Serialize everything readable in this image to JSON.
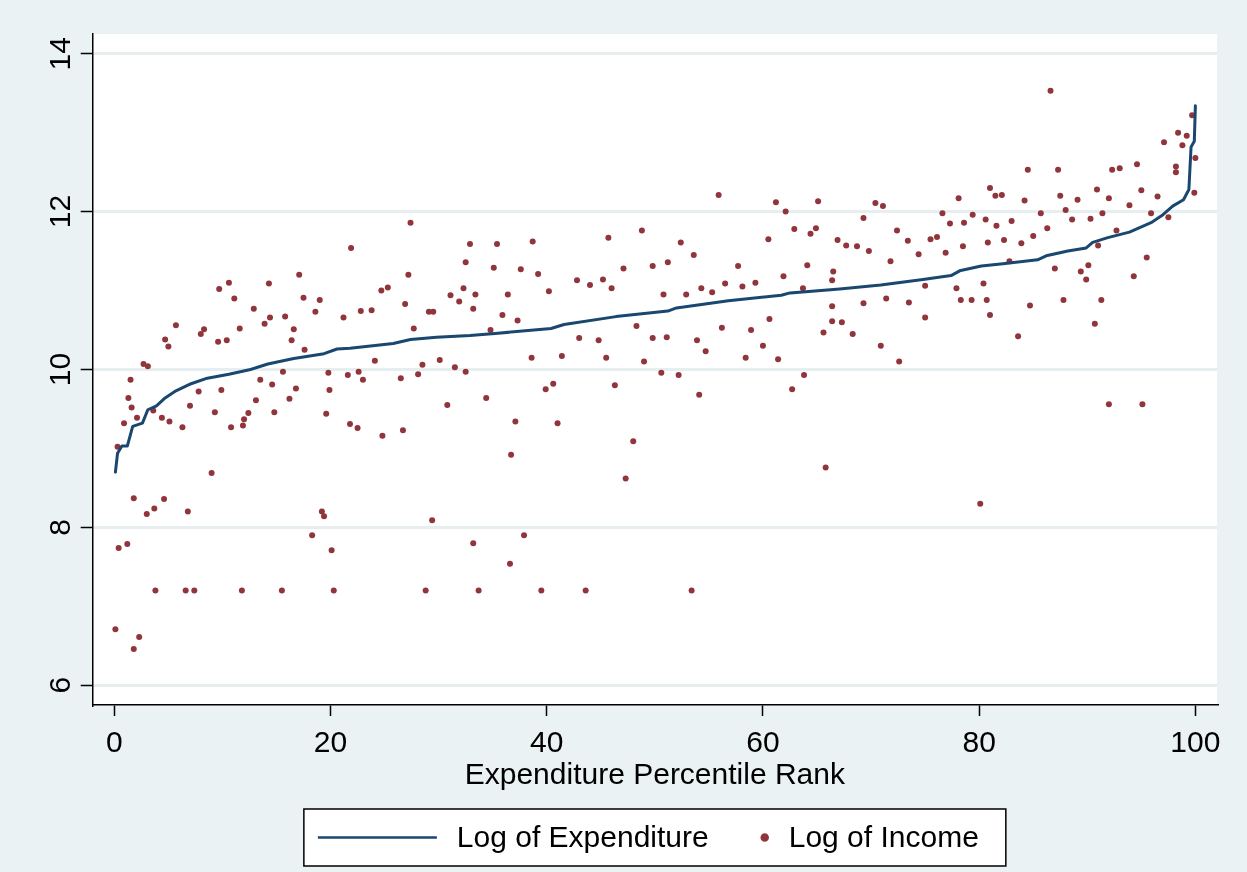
{
  "chart_data": {
    "type": "line",
    "xlabel": "Expenditure Percentile Rank",
    "xlim": [
      -2,
      102
    ],
    "xticks": [
      0,
      20,
      40,
      60,
      80,
      100
    ],
    "ylim": [
      5.75,
      14.25
    ],
    "yticks": [
      6,
      8,
      10,
      12,
      14
    ],
    "grid": "y",
    "legend": "bottom",
    "series": [
      {
        "name": "Log of Expenditure",
        "color": "#1a476f",
        "x": [
          0.1,
          0.3,
          0.7,
          1.2,
          1.7,
          2.6,
          3.1,
          3.9,
          4.7,
          5.7,
          7.1,
          8.6,
          10.6,
          12.6,
          14.2,
          16.6,
          19.4,
          20.6,
          21.8,
          25.8,
          27.4,
          29.8,
          32.9,
          35.5,
          40.4,
          41.6,
          46.4,
          51.2,
          52.0,
          56.8,
          61.7,
          62.5,
          67.1,
          70.9,
          74.8,
          77.4,
          78.2,
          80.2,
          82.2,
          85.4,
          86.2,
          88.2,
          89.9,
          90.5,
          91.9,
          93.9,
          95.9,
          96.9,
          97.9,
          98.9,
          99.4,
          99.6,
          99.9,
          100
        ],
        "values": [
          8.7,
          8.94,
          9.03,
          9.03,
          9.28,
          9.32,
          9.49,
          9.54,
          9.64,
          9.73,
          9.82,
          9.89,
          9.94,
          10.0,
          10.07,
          10.14,
          10.2,
          10.26,
          10.27,
          10.33,
          10.38,
          10.41,
          10.43,
          10.46,
          10.52,
          10.57,
          10.67,
          10.74,
          10.78,
          10.87,
          10.94,
          10.97,
          11.02,
          11.07,
          11.14,
          11.19,
          11.25,
          11.31,
          11.34,
          11.39,
          11.44,
          11.5,
          11.54,
          11.61,
          11.67,
          11.74,
          11.86,
          11.95,
          12.07,
          12.15,
          12.28,
          12.82,
          12.89,
          13.34
        ]
      },
      {
        "name": "Log of Income",
        "type": "scatter",
        "marker": "circle",
        "color": "#90353b",
        "x": [
          27.4,
          21.9,
          17.1,
          9.7,
          10.6,
          14.3,
          27.2,
          25.3,
          24.7,
          17.5,
          11.1,
          12.9,
          5.7,
          4.7,
          5.0,
          2.7,
          3.1,
          1.5,
          1.3,
          1.6,
          0.9,
          2.1,
          0.3,
          0.1,
          1.8,
          2.3,
          0.4,
          1.2,
          1.8,
          3.0,
          3.7,
          4.6,
          6.8,
          9.0,
          3.8,
          6.6,
          7.4,
          11.8,
          15.5,
          20.3,
          28.8,
          18.3,
          19.2,
          19.4,
          20.1,
          29.4,
          8.3,
          8.0,
          9.6,
          10.4,
          11.6,
          13.9,
          14.4,
          15.8,
          16.6,
          16.4,
          17.6,
          19.0,
          18.6,
          21.2,
          22.8,
          23.8,
          26.9,
          27.7,
          29.1,
          29.5,
          31.1,
          31.9,
          32.3,
          3.6,
          4.4,
          5.1,
          6.3,
          7.0,
          7.8,
          9.3,
          9.9,
          10.8,
          11.9,
          12.0,
          12.4,
          13.1,
          13.5,
          14.6,
          14.8,
          15.6,
          16.2,
          16.8,
          19.6,
          19.9,
          19.8,
          21.6,
          21.8,
          22.5,
          22.6,
          23.0,
          24.1,
          24.8,
          26.5,
          26.7,
          28.1,
          28.5,
          30.1,
          30.8,
          31.5,
          32.5,
          55.9,
          61.2,
          62.1,
          65.1,
          48.8,
          45.7,
          38.7,
          35.4,
          32.9,
          52.4,
          60.5,
          62.9,
          64.4,
          64.9,
          66.9,
          32.5,
          35.1,
          37.6,
          39.2,
          42.8,
          45.2,
          47.1,
          49.8,
          51.2,
          53.6,
          54.3,
          56.5,
          57.7,
          59.3,
          61.9,
          64.1,
          66.5,
          33.4,
          36.4,
          40.2,
          44.0,
          46.0,
          50.8,
          52.9,
          55.3,
          58.1,
          63.7,
          35.9,
          37.3,
          34.8,
          33.2,
          38.6,
          41.4,
          43.0,
          44.8,
          45.5,
          48.3,
          49.8,
          51.1,
          53.9,
          49.0,
          50.6,
          52.2,
          54.7,
          56.2,
          58.4,
          58.9,
          60.0,
          60.6,
          61.4,
          65.6,
          66.4,
          34.4,
          37.1,
          39.9,
          40.6,
          41.0,
          46.3,
          48.0,
          47.3,
          54.1,
          62.7,
          63.8,
          65.8,
          36.7,
          33.2,
          37.9,
          36.6,
          33.7,
          39.5,
          43.6,
          53.4,
          86.6,
          99.7,
          98.4,
          99.2,
          97.1,
          98.8,
          100,
          98.2,
          98.2,
          99.9,
          94.6,
          92.3,
          93.0,
          87.3,
          84.5,
          81.0,
          81.5,
          82.1,
          78.1,
          84.2,
          87.5,
          89.1,
          90.9,
          92.0,
          95.0,
          96.5,
          70.4,
          71.1,
          69.3,
          76.6,
          79.4,
          80.6,
          83.0,
          85.7,
          88.0,
          90.3,
          91.4,
          93.9,
          95.9,
          97.5,
          67.7,
          68.7,
          72.4,
          73.4,
          75.5,
          76.1,
          77.3,
          78.6,
          81.6,
          82.3,
          83.9,
          85.0,
          86.3,
          88.6,
          92.7,
          69.8,
          71.8,
          74.4,
          76.9,
          78.5,
          80.8,
          82.8,
          87.0,
          90.1,
          89.4,
          89.9,
          91.0,
          94.3,
          95.5,
          66.4,
          69.3,
          71.4,
          73.5,
          75.0,
          77.9,
          78.3,
          79.3,
          80.4,
          80.7,
          84.7,
          87.8,
          91.3,
          90.7,
          67.3,
          68.3,
          75.0,
          81.0,
          83.6,
          70.9,
          72.6,
          92.0,
          95.1,
          80.1,
          66.4
        ],
        "values": [
          11.86,
          11.54,
          11.2,
          11.02,
          11.1,
          11.09,
          11.2,
          11.04,
          11.0,
          10.91,
          10.9,
          10.77,
          10.56,
          10.38,
          10.29,
          10.07,
          10.04,
          9.87,
          9.64,
          9.52,
          9.32,
          9.39,
          9.02,
          6.71,
          6.46,
          6.61,
          7.74,
          7.79,
          8.37,
          8.17,
          8.24,
          8.36,
          8.2,
          8.69,
          7.2,
          7.2,
          7.2,
          7.2,
          7.2,
          7.2,
          7.2,
          7.9,
          8.2,
          8.14,
          7.71,
          8.09,
          10.51,
          10.45,
          10.35,
          10.37,
          10.52,
          10.58,
          10.66,
          10.67,
          10.51,
          10.37,
          10.25,
          10.88,
          10.73,
          10.66,
          10.74,
          10.75,
          10.83,
          10.52,
          10.73,
          10.73,
          10.94,
          10.86,
          11.03,
          9.48,
          9.39,
          9.34,
          9.27,
          9.54,
          9.72,
          9.46,
          9.74,
          9.27,
          9.29,
          9.37,
          9.45,
          9.61,
          9.87,
          9.81,
          9.46,
          9.97,
          9.63,
          9.76,
          9.44,
          9.74,
          9.96,
          9.93,
          9.31,
          9.26,
          9.97,
          9.87,
          10.11,
          9.16,
          9.89,
          9.23,
          9.94,
          10.06,
          10.12,
          9.55,
          10.03,
          9.97,
          12.21,
          12.12,
          12.0,
          12.13,
          11.76,
          11.67,
          11.62,
          11.59,
          11.59,
          11.61,
          11.65,
          11.78,
          11.72,
          11.79,
          11.64,
          11.36,
          11.29,
          11.27,
          11.21,
          11.13,
          11.14,
          11.28,
          11.31,
          11.36,
          11.45,
          11.03,
          11.09,
          11.31,
          11.1,
          11.18,
          11.32,
          11.24,
          10.95,
          10.95,
          10.99,
          11.07,
          11.03,
          10.95,
          10.95,
          10.98,
          11.05,
          11.03,
          10.69,
          10.62,
          10.5,
          10.77,
          10.15,
          10.17,
          10.4,
          10.37,
          10.15,
          10.55,
          10.4,
          10.41,
          10.37,
          10.1,
          9.96,
          9.93,
          10.23,
          10.53,
          10.15,
          10.5,
          10.3,
          10.64,
          10.13,
          10.47,
          10.61,
          9.64,
          9.34,
          9.75,
          9.82,
          9.32,
          9.8,
          9.09,
          8.62,
          9.68,
          9.75,
          9.93,
          8.76,
          8.92,
          7.8,
          7.9,
          7.54,
          7.2,
          7.2,
          7.2,
          7.2,
          13.53,
          13.22,
          13.0,
          12.96,
          12.88,
          12.84,
          12.68,
          12.57,
          12.5,
          12.24,
          12.6,
          12.53,
          12.55,
          12.53,
          12.53,
          12.3,
          12.2,
          12.21,
          12.17,
          12.14,
          12.2,
          12.15,
          12.28,
          12.17,
          12.27,
          12.19,
          12.11,
          12.07,
          11.92,
          11.98,
          11.96,
          11.9,
          11.88,
          11.98,
          12.02,
          11.91,
          11.98,
          12.08,
          11.98,
          11.93,
          11.57,
          11.56,
          11.76,
          11.63,
          11.65,
          11.68,
          11.85,
          11.86,
          11.82,
          11.64,
          11.6,
          11.69,
          11.79,
          11.9,
          11.76,
          11.5,
          11.37,
          11.46,
          11.48,
          11.56,
          11.61,
          11.37,
          11.28,
          11.32,
          11.24,
          11.14,
          11.57,
          11.18,
          11.42,
          11.13,
          10.84,
          10.9,
          10.85,
          11.06,
          11.03,
          10.88,
          10.88,
          11.09,
          10.88,
          10.81,
          10.88,
          10.88,
          10.58,
          10.6,
          10.45,
          10.66,
          10.69,
          10.42,
          10.3,
          10.1,
          9.56,
          9.56,
          8.3,
          10.8
        ]
      }
    ]
  }
}
